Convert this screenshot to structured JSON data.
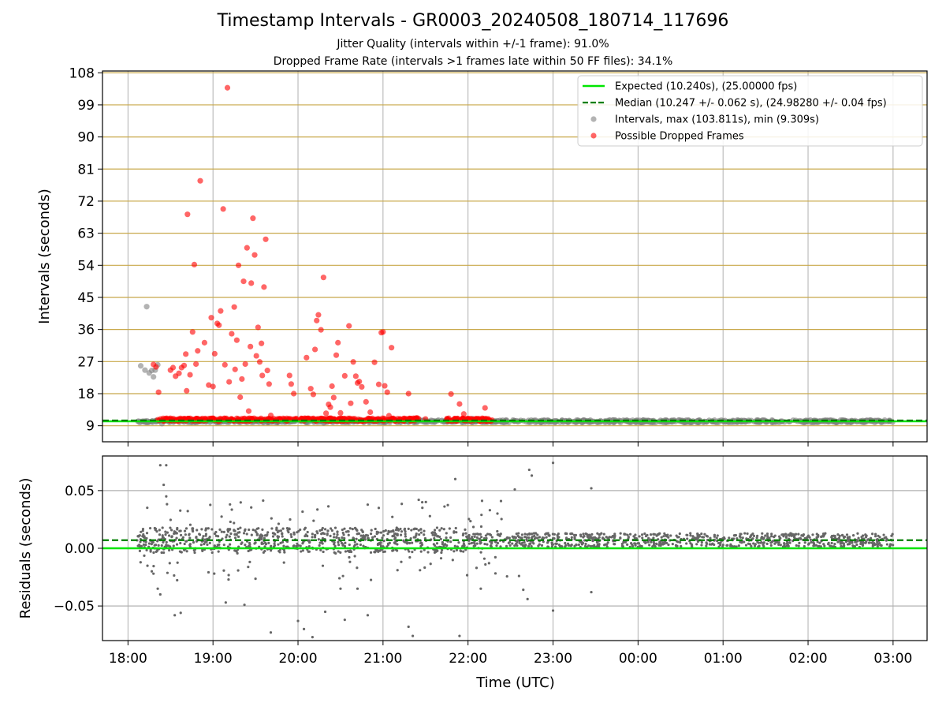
{
  "figure": {
    "title": "Timestamp Intervals - GR0003_20240508_180714_117696",
    "subtitle_1": "Jitter Quality (intervals within +/-1 frame): 91.0%",
    "subtitle_2": "Dropped Frame Rate (intervals >1 frames late within 50 FF files): 34.1%"
  },
  "colors": {
    "expected": "#00e600",
    "median": "#007f00",
    "intervals": "#808080",
    "dropped": "#ff0000",
    "hgrid": "#c8a84a",
    "vgrid": "#b0b0b0",
    "residuals": "#666666"
  },
  "chart_data": [
    {
      "type": "scatter",
      "xlabel": "",
      "ylabel": "Intervals (seconds)",
      "x_axis": "time (UTC, hours since 18:00 on the shown day; ticks 18:00..03:00)",
      "xlim": [
        -0.3,
        9.4
      ],
      "ylim": [
        4.5,
        108.5
      ],
      "yticks": [
        9,
        18,
        27,
        36,
        45,
        54,
        63,
        72,
        81,
        90,
        99,
        108
      ],
      "grid": {
        "horizontal": true,
        "vertical": true
      },
      "legend": {
        "position": "top-right",
        "entries": [
          "Expected (10.240s), (25.00000 fps)",
          "Median (10.247 +/- 0.062 s), (24.98280 +/- 0.04 fps)",
          "Intervals, max (103.811s), min (9.309s)",
          "Possible Dropped Frames"
        ]
      },
      "series": [
        {
          "name": "Expected (10.240s), (25.00000 fps)",
          "kind": "hline",
          "y": 10.24
        },
        {
          "name": "Median (10.247 +/- 0.062 s), (24.98280 +/- 0.04 fps)",
          "kind": "hline",
          "y": 10.247
        },
        {
          "name": "Intervals, max (103.811s), min (9.309s)",
          "kind": "scatter",
          "points": [
            [
              0.15,
              25.8
            ],
            [
              0.2,
              24.6
            ],
            [
              0.22,
              42.4
            ],
            [
              0.25,
              23.8
            ],
            [
              0.28,
              24.5
            ],
            [
              0.3,
              22.7
            ],
            [
              0.32,
              24.6
            ],
            [
              0.35,
              26.1
            ],
            [
              0.4,
              9.6
            ],
            [
              0.45,
              10.3
            ],
            [
              1.6,
              10.1
            ],
            [
              2.1,
              10.0
            ],
            [
              2.3,
              9.8
            ],
            [
              2.6,
              9.9
            ],
            [
              3.2,
              10.1
            ],
            [
              3.5,
              10.0
            ],
            [
              4.05,
              11.0
            ],
            [
              4.1,
              10.5
            ]
          ],
          "band": {
            "x": [
              0.1,
              9.0
            ],
            "y": [
              9.9,
              10.6
            ]
          }
        },
        {
          "name": "Possible Dropped Frames",
          "kind": "scatter",
          "points": [
            [
              0.3,
              26.2
            ],
            [
              0.33,
              25.5
            ],
            [
              0.36,
              18.4
            ],
            [
              0.5,
              24.6
            ],
            [
              0.53,
              25.3
            ],
            [
              0.56,
              22.9
            ],
            [
              0.6,
              23.7
            ],
            [
              0.63,
              25.3
            ],
            [
              0.66,
              25.9
            ],
            [
              0.68,
              29.1
            ],
            [
              0.69,
              18.8
            ],
            [
              0.7,
              68.3
            ],
            [
              0.73,
              23.3
            ],
            [
              0.76,
              35.3
            ],
            [
              0.78,
              54.2
            ],
            [
              0.8,
              26.3
            ],
            [
              0.82,
              30.0
            ],
            [
              0.85,
              77.7
            ],
            [
              0.9,
              32.3
            ],
            [
              0.95,
              20.4
            ],
            [
              0.98,
              39.3
            ],
            [
              1.0,
              20.0
            ],
            [
              1.02,
              29.2
            ],
            [
              1.05,
              37.7
            ],
            [
              1.07,
              37.2
            ],
            [
              1.09,
              41.2
            ],
            [
              1.12,
              69.8
            ],
            [
              1.14,
              26.1
            ],
            [
              1.17,
              103.8
            ],
            [
              1.19,
              21.3
            ],
            [
              1.22,
              34.8
            ],
            [
              1.25,
              42.3
            ],
            [
              1.26,
              24.8
            ],
            [
              1.28,
              33.0
            ],
            [
              1.3,
              54.0
            ],
            [
              1.32,
              17.0
            ],
            [
              1.34,
              22.1
            ],
            [
              1.36,
              49.5
            ],
            [
              1.38,
              26.3
            ],
            [
              1.4,
              58.9
            ],
            [
              1.42,
              13.1
            ],
            [
              1.44,
              31.2
            ],
            [
              1.45,
              49.0
            ],
            [
              1.47,
              67.2
            ],
            [
              1.49,
              56.9
            ],
            [
              1.51,
              28.6
            ],
            [
              1.53,
              36.6
            ],
            [
              1.55,
              26.9
            ],
            [
              1.57,
              32.1
            ],
            [
              1.58,
              23.1
            ],
            [
              1.6,
              47.9
            ],
            [
              1.62,
              61.3
            ],
            [
              1.64,
              24.5
            ],
            [
              1.66,
              20.7
            ],
            [
              1.68,
              11.9
            ],
            [
              1.9,
              23.1
            ],
            [
              1.92,
              20.7
            ],
            [
              1.95,
              18.0
            ],
            [
              2.1,
              28.1
            ],
            [
              2.15,
              19.4
            ],
            [
              2.18,
              17.8
            ],
            [
              2.2,
              30.4
            ],
            [
              2.22,
              38.5
            ],
            [
              2.24,
              40.1
            ],
            [
              2.27,
              35.9
            ],
            [
              2.3,
              50.6
            ],
            [
              2.33,
              12.5
            ],
            [
              2.36,
              15.0
            ],
            [
              2.38,
              14.2
            ],
            [
              2.4,
              20.1
            ],
            [
              2.42,
              16.9
            ],
            [
              2.45,
              28.8
            ],
            [
              2.47,
              32.3
            ],
            [
              2.5,
              12.6
            ],
            [
              2.55,
              23.0
            ],
            [
              2.6,
              37.0
            ],
            [
              2.62,
              15.3
            ],
            [
              2.65,
              26.9
            ],
            [
              2.68,
              22.9
            ],
            [
              2.7,
              21.0
            ],
            [
              2.72,
              21.4
            ],
            [
              2.75,
              19.9
            ],
            [
              2.8,
              15.7
            ],
            [
              2.85,
              12.8
            ],
            [
              2.9,
              26.8
            ],
            [
              2.95,
              20.6
            ],
            [
              2.98,
              35.1
            ],
            [
              3.0,
              35.3
            ],
            [
              3.02,
              20.2
            ],
            [
              3.05,
              18.4
            ],
            [
              3.07,
              11.8
            ],
            [
              3.1,
              30.9
            ],
            [
              3.3,
              18.0
            ],
            [
              3.4,
              11.2
            ],
            [
              3.5,
              10.9
            ],
            [
              3.8,
              17.9
            ],
            [
              3.9,
              15.1
            ],
            [
              3.95,
              12.3
            ],
            [
              4.0,
              10.5
            ],
            [
              4.1,
              10.8
            ],
            [
              4.2,
              14.0
            ]
          ],
          "band": {
            "x": [
              0.35,
              4.3
            ],
            "y": [
              10.3,
              11.1
            ]
          }
        }
      ]
    },
    {
      "type": "scatter",
      "xlabel": "Time (UTC)",
      "ylabel": "Residuals (seconds)",
      "xlim": [
        -0.3,
        9.4
      ],
      "ylim": [
        -0.08,
        0.08
      ],
      "yticks": [
        -0.05,
        0.0,
        0.05
      ],
      "ytick_labels": [
        "−0.05",
        "0.00",
        "0.05"
      ],
      "xticks": [
        0,
        1,
        2,
        3,
        4,
        5,
        6,
        7,
        8,
        9
      ],
      "xtick_labels": [
        "18:00",
        "19:00",
        "20:00",
        "21:00",
        "22:00",
        "23:00",
        "00:00",
        "01:00",
        "02:00",
        "03:00"
      ],
      "grid": {
        "horizontal": true,
        "vertical": true
      },
      "series": [
        {
          "name": "",
          "kind": "hline",
          "y": 0.0
        },
        {
          "name": "",
          "kind": "hline",
          "y": 0.007
        },
        {
          "name": "",
          "kind": "scatter",
          "band": {
            "x": [
              0.1,
              9.0
            ],
            "center": 0.007,
            "spread": 0.006
          },
          "outliers": [
            [
              0.38,
              0.072
            ],
            [
              0.45,
              0.072
            ],
            [
              0.42,
              0.055
            ],
            [
              0.45,
              0.045
            ],
            [
              0.28,
              -0.02
            ],
            [
              0.3,
              -0.022
            ],
            [
              0.35,
              -0.035
            ],
            [
              0.38,
              -0.04
            ],
            [
              0.55,
              -0.058
            ],
            [
              0.62,
              -0.056
            ],
            [
              1.2,
              0.038
            ],
            [
              1.15,
              -0.047
            ],
            [
              1.37,
              -0.049
            ],
            [
              1.68,
              -0.073
            ],
            [
              2.0,
              -0.063
            ],
            [
              2.07,
              -0.07
            ],
            [
              2.17,
              -0.077
            ],
            [
              2.32,
              -0.055
            ],
            [
              2.5,
              -0.035
            ],
            [
              2.55,
              -0.062
            ],
            [
              2.7,
              -0.035
            ],
            [
              2.82,
              -0.058
            ],
            [
              2.95,
              0.035
            ],
            [
              3.3,
              -0.068
            ],
            [
              3.35,
              -0.076
            ],
            [
              3.42,
              0.042
            ],
            [
              3.85,
              0.06
            ],
            [
              3.9,
              -0.076
            ],
            [
              4.1,
              -0.017
            ],
            [
              4.15,
              -0.035
            ],
            [
              4.55,
              0.051
            ],
            [
              4.6,
              -0.024
            ],
            [
              4.65,
              -0.036
            ],
            [
              4.7,
              -0.044
            ],
            [
              4.72,
              0.068
            ],
            [
              4.75,
              0.063
            ],
            [
              5.0,
              0.074
            ],
            [
              5.0,
              -0.054
            ],
            [
              5.45,
              0.052
            ],
            [
              5.45,
              -0.038
            ]
          ]
        }
      ]
    }
  ]
}
